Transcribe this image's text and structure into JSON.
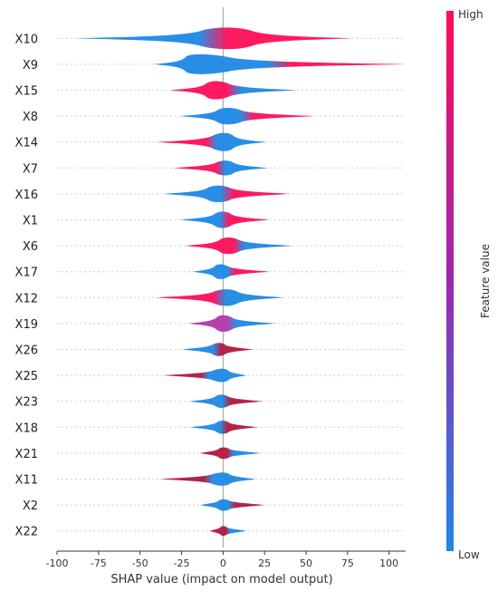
{
  "chart_data": {
    "type": "violin",
    "xlabel": "SHAP value (impact on model output)",
    "colorbar": {
      "label": "Feature value",
      "high_label": "High",
      "low_label": "Low",
      "high_color": "#ff0d57",
      "low_color": "#1e88e5"
    },
    "xlim": [
      -100,
      110
    ],
    "xticks": [
      -100,
      -75,
      -50,
      -25,
      0,
      25,
      50,
      75,
      100
    ],
    "features": [
      {
        "name": "X10",
        "min": -90,
        "max": 78,
        "center": 5,
        "peak": 13,
        "color_low_side": "blue",
        "color_high_side": "pink"
      },
      {
        "name": "X9",
        "min": -42,
        "max": 110,
        "center": -18,
        "peak": 12,
        "color_low_side": "blue",
        "color_high_side": "pink"
      },
      {
        "name": "X15",
        "min": -32,
        "max": 45,
        "center": -5,
        "peak": 11,
        "color_low_side": "pink",
        "color_high_side": "blue"
      },
      {
        "name": "X8",
        "min": -26,
        "max": 55,
        "center": 2,
        "peak": 10,
        "color_low_side": "blue",
        "color_high_side": "pink"
      },
      {
        "name": "X14",
        "min": -40,
        "max": 26,
        "center": 2,
        "peak": 11,
        "color_low_side": "pink",
        "color_high_side": "blue"
      },
      {
        "name": "X7",
        "min": -30,
        "max": 27,
        "center": 2,
        "peak": 9,
        "color_low_side": "pink",
        "color_high_side": "blue"
      },
      {
        "name": "X16",
        "min": -36,
        "max": 41,
        "center": -3,
        "peak": 10,
        "color_low_side": "blue",
        "color_high_side": "pink"
      },
      {
        "name": "X1",
        "min": -26,
        "max": 28,
        "center": 0,
        "peak": 10,
        "color_low_side": "blue",
        "color_high_side": "pink"
      },
      {
        "name": "X6",
        "min": -23,
        "max": 42,
        "center": 3,
        "peak": 10,
        "color_low_side": "pink",
        "color_high_side": "blue"
      },
      {
        "name": "X17",
        "min": -18,
        "max": 28,
        "center": -2,
        "peak": 9,
        "color_low_side": "blue",
        "color_high_side": "pink"
      },
      {
        "name": "X12",
        "min": -41,
        "max": 37,
        "center": 3,
        "peak": 10,
        "color_low_side": "pink",
        "color_high_side": "blue"
      },
      {
        "name": "X19",
        "min": -21,
        "max": 32,
        "center": 0,
        "peak": 10,
        "color_low_side": "purple",
        "color_high_side": "blue"
      },
      {
        "name": "X26",
        "min": -25,
        "max": 18,
        "center": -2,
        "peak": 8,
        "color_low_side": "blue",
        "color_high_side": "darkred"
      },
      {
        "name": "X25",
        "min": -36,
        "max": 14,
        "center": 1,
        "peak": 8,
        "color_low_side": "darkred",
        "color_high_side": "blue"
      },
      {
        "name": "X23",
        "min": -20,
        "max": 24,
        "center": -1,
        "peak": 8,
        "color_low_side": "blue",
        "color_high_side": "darkred"
      },
      {
        "name": "X18",
        "min": -20,
        "max": 21,
        "center": 0,
        "peak": 8,
        "color_low_side": "blue",
        "color_high_side": "darkred"
      },
      {
        "name": "X21",
        "min": -14,
        "max": 23,
        "center": 0,
        "peak": 7,
        "color_low_side": "darkred",
        "color_high_side": "blue"
      },
      {
        "name": "X11",
        "min": -38,
        "max": 20,
        "center": 1,
        "peak": 8,
        "color_low_side": "darkred",
        "color_high_side": "blue"
      },
      {
        "name": "X2",
        "min": -14,
        "max": 25,
        "center": 0,
        "peak": 7,
        "color_low_side": "blue",
        "color_high_side": "darkred"
      },
      {
        "name": "X22",
        "min": -8,
        "max": 14,
        "center": 0,
        "peak": 6,
        "color_low_side": "darkred",
        "color_high_side": "blue"
      }
    ]
  }
}
